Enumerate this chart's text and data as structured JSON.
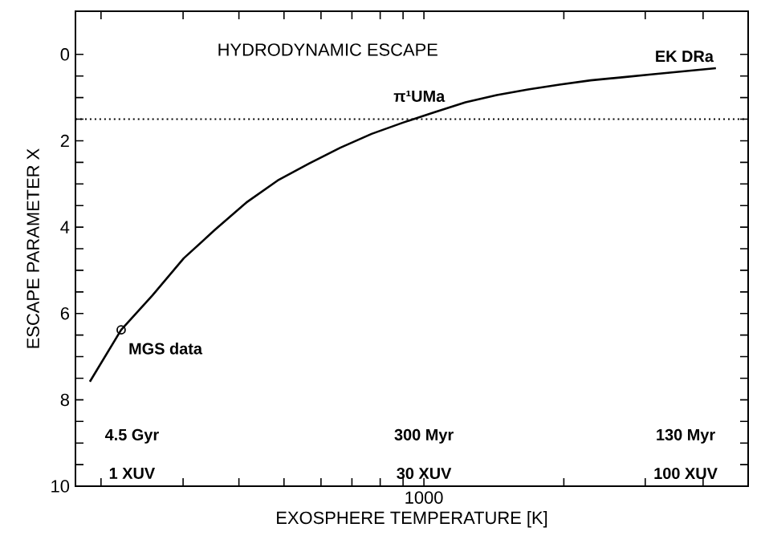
{
  "chart_data": {
    "type": "line",
    "xlabel": "EXOSPHERE TEMPERATURE [K]",
    "ylabel": "ESCAPE PARAMETER X",
    "categories": [
      null,
      null,
      null,
      null,
      null,
      null,
      null,
      null,
      null,
      null,
      null,
      null,
      null,
      null,
      null,
      null,
      null,
      null,
      null,
      null,
      null
    ],
    "ylim": [
      10,
      -1
    ],
    "yticks": [
      0,
      2,
      4,
      6,
      8,
      10
    ],
    "series": [
      {
        "color": "#000000",
        "line_style": "solid",
        "marker": "none",
        "values": [
          7.58,
          6.38,
          5.58,
          4.72,
          4.06,
          3.43,
          2.92,
          2.53,
          2.16,
          1.84,
          1.58,
          1.34,
          1.11,
          0.94,
          0.81,
          0.7,
          0.6,
          0.53,
          0.46,
          0.39,
          0.32
        ]
      },
      {
        "type": "scatter",
        "color": "#000000",
        "marker": "circle",
        "values": [
          null,
          6.38,
          null,
          null,
          null,
          null,
          null,
          null,
          null,
          null,
          null,
          null,
          null,
          null,
          null,
          null,
          null,
          null,
          null,
          null,
          null
        ]
      }
    ],
    "ref_lines": [
      {
        "axis": "y",
        "value": 1.5,
        "line_style": "dotted",
        "color": "#000000"
      }
    ],
    "annotations": [
      "HYDRODYNAMIC ESCAPE",
      "1000",
      "EK DRa",
      "π¹UMa",
      "MGS data",
      "4.5 Gyr",
      "1 XUV",
      "300 Myr",
      "30 XUV",
      "130 Myr",
      "100 XUV"
    ]
  }
}
